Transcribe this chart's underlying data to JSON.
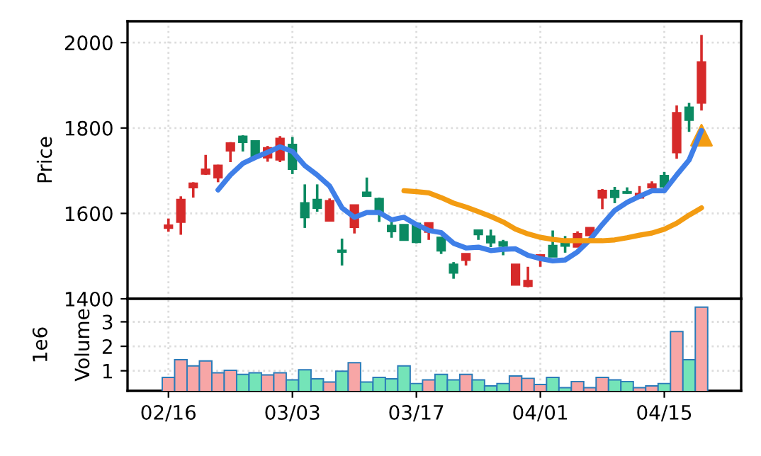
{
  "chart_data": [
    {
      "type": "candlestick",
      "ylabel": "Price",
      "categories": [
        null,
        null,
        null,
        null,
        null,
        null,
        null,
        null,
        null,
        null,
        null,
        null,
        null,
        null,
        null,
        null,
        null,
        null,
        null,
        null,
        null,
        null,
        null,
        null,
        null,
        null,
        null,
        null,
        null,
        null,
        null,
        null,
        null,
        null,
        null,
        null,
        null,
        null,
        null,
        null,
        null,
        null,
        null,
        null
      ],
      "ohlc": [
        [
          1566,
          1588,
          1557,
          1572
        ],
        [
          1580,
          1640,
          1550,
          1632
        ],
        [
          1661,
          1673,
          1637,
          1670
        ],
        [
          1693,
          1737,
          1690,
          1703
        ],
        [
          1684,
          1714,
          1673,
          1712
        ],
        [
          1747,
          1767,
          1720,
          1764
        ],
        [
          1780,
          1783,
          1745,
          1767
        ],
        [
          1769,
          1769,
          1733,
          1734
        ],
        [
          1731,
          1758,
          1721,
          1753
        ],
        [
          1726,
          1781,
          1720,
          1775
        ],
        [
          1761,
          1779,
          1692,
          1704
        ],
        [
          1624,
          1668,
          1566,
          1591
        ],
        [
          1632,
          1668,
          1604,
          1613
        ],
        [
          1583,
          1635,
          1583,
          1629
        ],
        [
          1513,
          1541,
          1478,
          1510
        ],
        [
          1568,
          1619,
          1553,
          1619
        ],
        [
          1649,
          1684,
          1641,
          1641
        ],
        [
          1634,
          1637,
          1580,
          1602
        ],
        [
          1571,
          1580,
          1543,
          1558
        ],
        [
          1573,
          1573,
          1538,
          1538
        ],
        [
          1576,
          1576,
          1530,
          1533
        ],
        [
          1557,
          1577,
          1538,
          1577
        ],
        [
          1543,
          1543,
          1505,
          1513
        ],
        [
          1480,
          1486,
          1447,
          1461
        ],
        [
          1491,
          1505,
          1478,
          1505
        ],
        [
          1560,
          1560,
          1538,
          1551
        ],
        [
          1546,
          1562,
          1521,
          1532
        ],
        [
          1533,
          1538,
          1502,
          1524
        ],
        [
          1433,
          1480,
          1433,
          1480
        ],
        [
          1430,
          1475,
          1427,
          1442
        ],
        [
          1496,
          1505,
          1475,
          1502
        ],
        [
          1524,
          1560,
          1499,
          1499
        ],
        [
          1533,
          1547,
          1508,
          1524
        ],
        [
          1522,
          1558,
          1522,
          1552
        ],
        [
          1549,
          1566,
          1549,
          1566
        ],
        [
          1637,
          1657,
          1610,
          1653
        ],
        [
          1653,
          1662,
          1624,
          1638
        ],
        [
          1650,
          1661,
          1646,
          1648
        ],
        [
          1637,
          1664,
          1637,
          1646
        ],
        [
          1661,
          1675,
          1659,
          1668
        ],
        [
          1688,
          1697,
          1659,
          1663
        ],
        [
          1743,
          1853,
          1728,
          1835
        ],
        [
          1848,
          1859,
          1791,
          1819
        ],
        [
          1859,
          2018,
          1841,
          1954
        ]
      ],
      "colors": [
        "#d62a2a",
        "#d62a2a",
        "#d62a2a",
        "#d62a2a",
        "#d62a2a",
        "#d62a2a",
        "#0b8a62",
        "#0b8a62",
        "#d62a2a",
        "#d62a2a",
        "#0b8a62",
        "#0b8a62",
        "#0b8a62",
        "#d62a2a",
        "#0b8a62",
        "#d62a2a",
        "#0b8a62",
        "#0b8a62",
        "#0b8a62",
        "#0b8a62",
        "#0b8a62",
        "#d62a2a",
        "#0b8a62",
        "#0b8a62",
        "#d62a2a",
        "#0b8a62",
        "#0b8a62",
        "#0b8a62",
        "#d62a2a",
        "#d62a2a",
        "#d62a2a",
        "#0b8a62",
        "#0b8a62",
        "#d62a2a",
        "#d62a2a",
        "#d62a2a",
        "#0b8a62",
        "#0b8a62",
        "#d62a2a",
        "#d62a2a",
        "#0b8a62",
        "#d62a2a",
        "#0b8a62",
        "#d62a2a"
      ],
      "series": [
        {
          "type": "line",
          "color": "#3f7fe8",
          "values": [
            null,
            null,
            null,
            null,
            1655,
            1690,
            1717,
            1731,
            1743,
            1756,
            1745,
            1712,
            1690,
            1664,
            1613,
            1591,
            1602,
            1602,
            1585,
            1591,
            1574,
            1560,
            1555,
            1530,
            1519,
            1521,
            1513,
            1516,
            1517,
            1502,
            1494,
            1489,
            1491,
            1510,
            1538,
            1574,
            1607,
            1626,
            1640,
            1653,
            1653,
            1690,
            1725,
            1794
          ]
        },
        {
          "type": "line",
          "color": "#f39c12",
          "values": [
            null,
            null,
            null,
            null,
            null,
            null,
            null,
            null,
            null,
            null,
            null,
            null,
            null,
            null,
            null,
            null,
            null,
            null,
            null,
            1653,
            1651,
            1648,
            1637,
            1624,
            1615,
            1604,
            1593,
            1580,
            1563,
            1552,
            1544,
            1539,
            1536,
            1536,
            1536,
            1536,
            1538,
            1543,
            1549,
            1554,
            1563,
            1577,
            1596,
            1613
          ]
        },
        {
          "type": "scatter",
          "marker": "triangle",
          "color": "#f39c12",
          "values": [
            null,
            null,
            null,
            null,
            null,
            null,
            null,
            null,
            null,
            null,
            null,
            null,
            null,
            null,
            null,
            null,
            null,
            null,
            null,
            null,
            null,
            null,
            null,
            null,
            null,
            null,
            null,
            null,
            null,
            null,
            null,
            null,
            null,
            null,
            null,
            null,
            null,
            null,
            null,
            null,
            null,
            null,
            null,
            1783
          ]
        }
      ],
      "ylim": [
        1400,
        2050
      ],
      "yticks": [
        1400,
        1600,
        1800,
        2000
      ],
      "grid": true,
      "tick_labels": "y"
    },
    {
      "type": "bar",
      "ylabel": "Volume",
      "annotations": [
        "1e6"
      ],
      "categories": [
        "02/16",
        null,
        null,
        null,
        null,
        null,
        null,
        null,
        null,
        null,
        "03/03",
        null,
        null,
        null,
        null,
        null,
        null,
        null,
        null,
        null,
        "03/17",
        null,
        null,
        null,
        null,
        null,
        null,
        null,
        null,
        null,
        "04/01",
        null,
        null,
        null,
        null,
        null,
        null,
        null,
        null,
        null,
        "04/15",
        null,
        null,
        null
      ],
      "values": [
        0.73,
        1.45,
        1.2,
        1.4,
        0.92,
        1.02,
        0.85,
        0.92,
        0.83,
        0.92,
        0.63,
        1.04,
        0.67,
        0.54,
        0.98,
        1.33,
        0.54,
        0.73,
        0.67,
        1.2,
        0.48,
        0.63,
        0.85,
        0.63,
        0.85,
        0.63,
        0.38,
        0.48,
        0.79,
        0.69,
        0.44,
        0.73,
        0.31,
        0.56,
        0.31,
        0.73,
        0.63,
        0.56,
        0.31,
        0.38,
        0.48,
        2.6,
        1.45,
        3.6
      ],
      "colors": [
        "#f7a6a6",
        "#f7a6a6",
        "#f7a6a6",
        "#f7a6a6",
        "#f7a6a6",
        "#f7a6a6",
        "#74e4b8",
        "#74e4b8",
        "#f7a6a6",
        "#f7a6a6",
        "#74e4b8",
        "#74e4b8",
        "#74e4b8",
        "#f7a6a6",
        "#74e4b8",
        "#f7a6a6",
        "#74e4b8",
        "#74e4b8",
        "#74e4b8",
        "#74e4b8",
        "#74e4b8",
        "#f7a6a6",
        "#74e4b8",
        "#74e4b8",
        "#f7a6a6",
        "#74e4b8",
        "#74e4b8",
        "#74e4b8",
        "#f7a6a6",
        "#f7a6a6",
        "#f7a6a6",
        "#74e4b8",
        "#74e4b8",
        "#f7a6a6",
        "#f7a6a6",
        "#f7a6a6",
        "#74e4b8",
        "#74e4b8",
        "#f7a6a6",
        "#f7a6a6",
        "#74e4b8",
        "#f7a6a6",
        "#74e4b8",
        "#f7a6a6"
      ],
      "ylim": [
        0.18,
        3.94
      ],
      "yticks": [
        1,
        2,
        3
      ],
      "grid": true
    }
  ]
}
